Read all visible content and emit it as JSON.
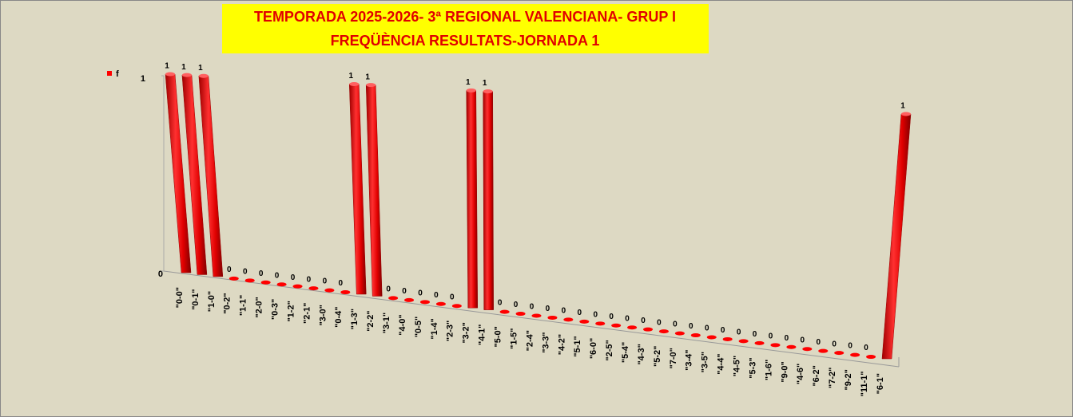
{
  "chart_data": {
    "type": "bar3d",
    "title": "TEMPORADA 2025-2026-  3ª REGIONAL VALENCIANA- GRUP I",
    "subtitle": "FREQÜÈNCIA RESULTATS-JORNADA 1",
    "categories": [
      "\"0-0\"",
      "\"0-1\"",
      "\"1-0\"",
      "\"0-2\"",
      "\"1-1\"",
      "\"2-0\"",
      "\"0-3\"",
      "\"1-2\"",
      "\"2-1\"",
      "\"3-0\"",
      "\"0-4\"",
      "\"1-3\"",
      "\"2-2\"",
      "\"3-1\"",
      "\"4-0\"",
      "\"0-5\"",
      "\"1-4\"",
      "\"2-3\"",
      "\"3-2\"",
      "\"4-1\"",
      "\"5-0\"",
      "\"1-5\"",
      "\"2-4\"",
      "\"3-3\"",
      "\"4-2\"",
      "\"5-1\"",
      "\"6-0\"",
      "\"2-5\"",
      "\"5-4\"",
      "\"4-3\"",
      "\"5-2\"",
      "\"7-0\"",
      "\"3-4\"",
      "\"3-5\"",
      "\"4-4\"",
      "\"4-5\"",
      "\"5-3\"",
      "\"1-6\"",
      "\"9-0\"",
      "\"4-6\"",
      "\"6-2\"",
      "\"7-2\"",
      "\"9-2\"",
      "\"11-1\"",
      "\"6-1\""
    ],
    "series": [
      {
        "name": "f",
        "color": "#ff0000",
        "values": [
          1,
          1,
          1,
          0,
          0,
          0,
          0,
          0,
          0,
          0,
          0,
          1,
          1,
          0,
          0,
          0,
          0,
          0,
          1,
          1,
          0,
          0,
          0,
          0,
          0,
          0,
          0,
          0,
          0,
          0,
          0,
          0,
          0,
          0,
          0,
          0,
          0,
          0,
          0,
          0,
          0,
          0,
          0,
          0,
          1
        ]
      }
    ],
    "ylim": [
      0,
      1
    ],
    "yticks": [
      0,
      1
    ],
    "legend": "left"
  }
}
